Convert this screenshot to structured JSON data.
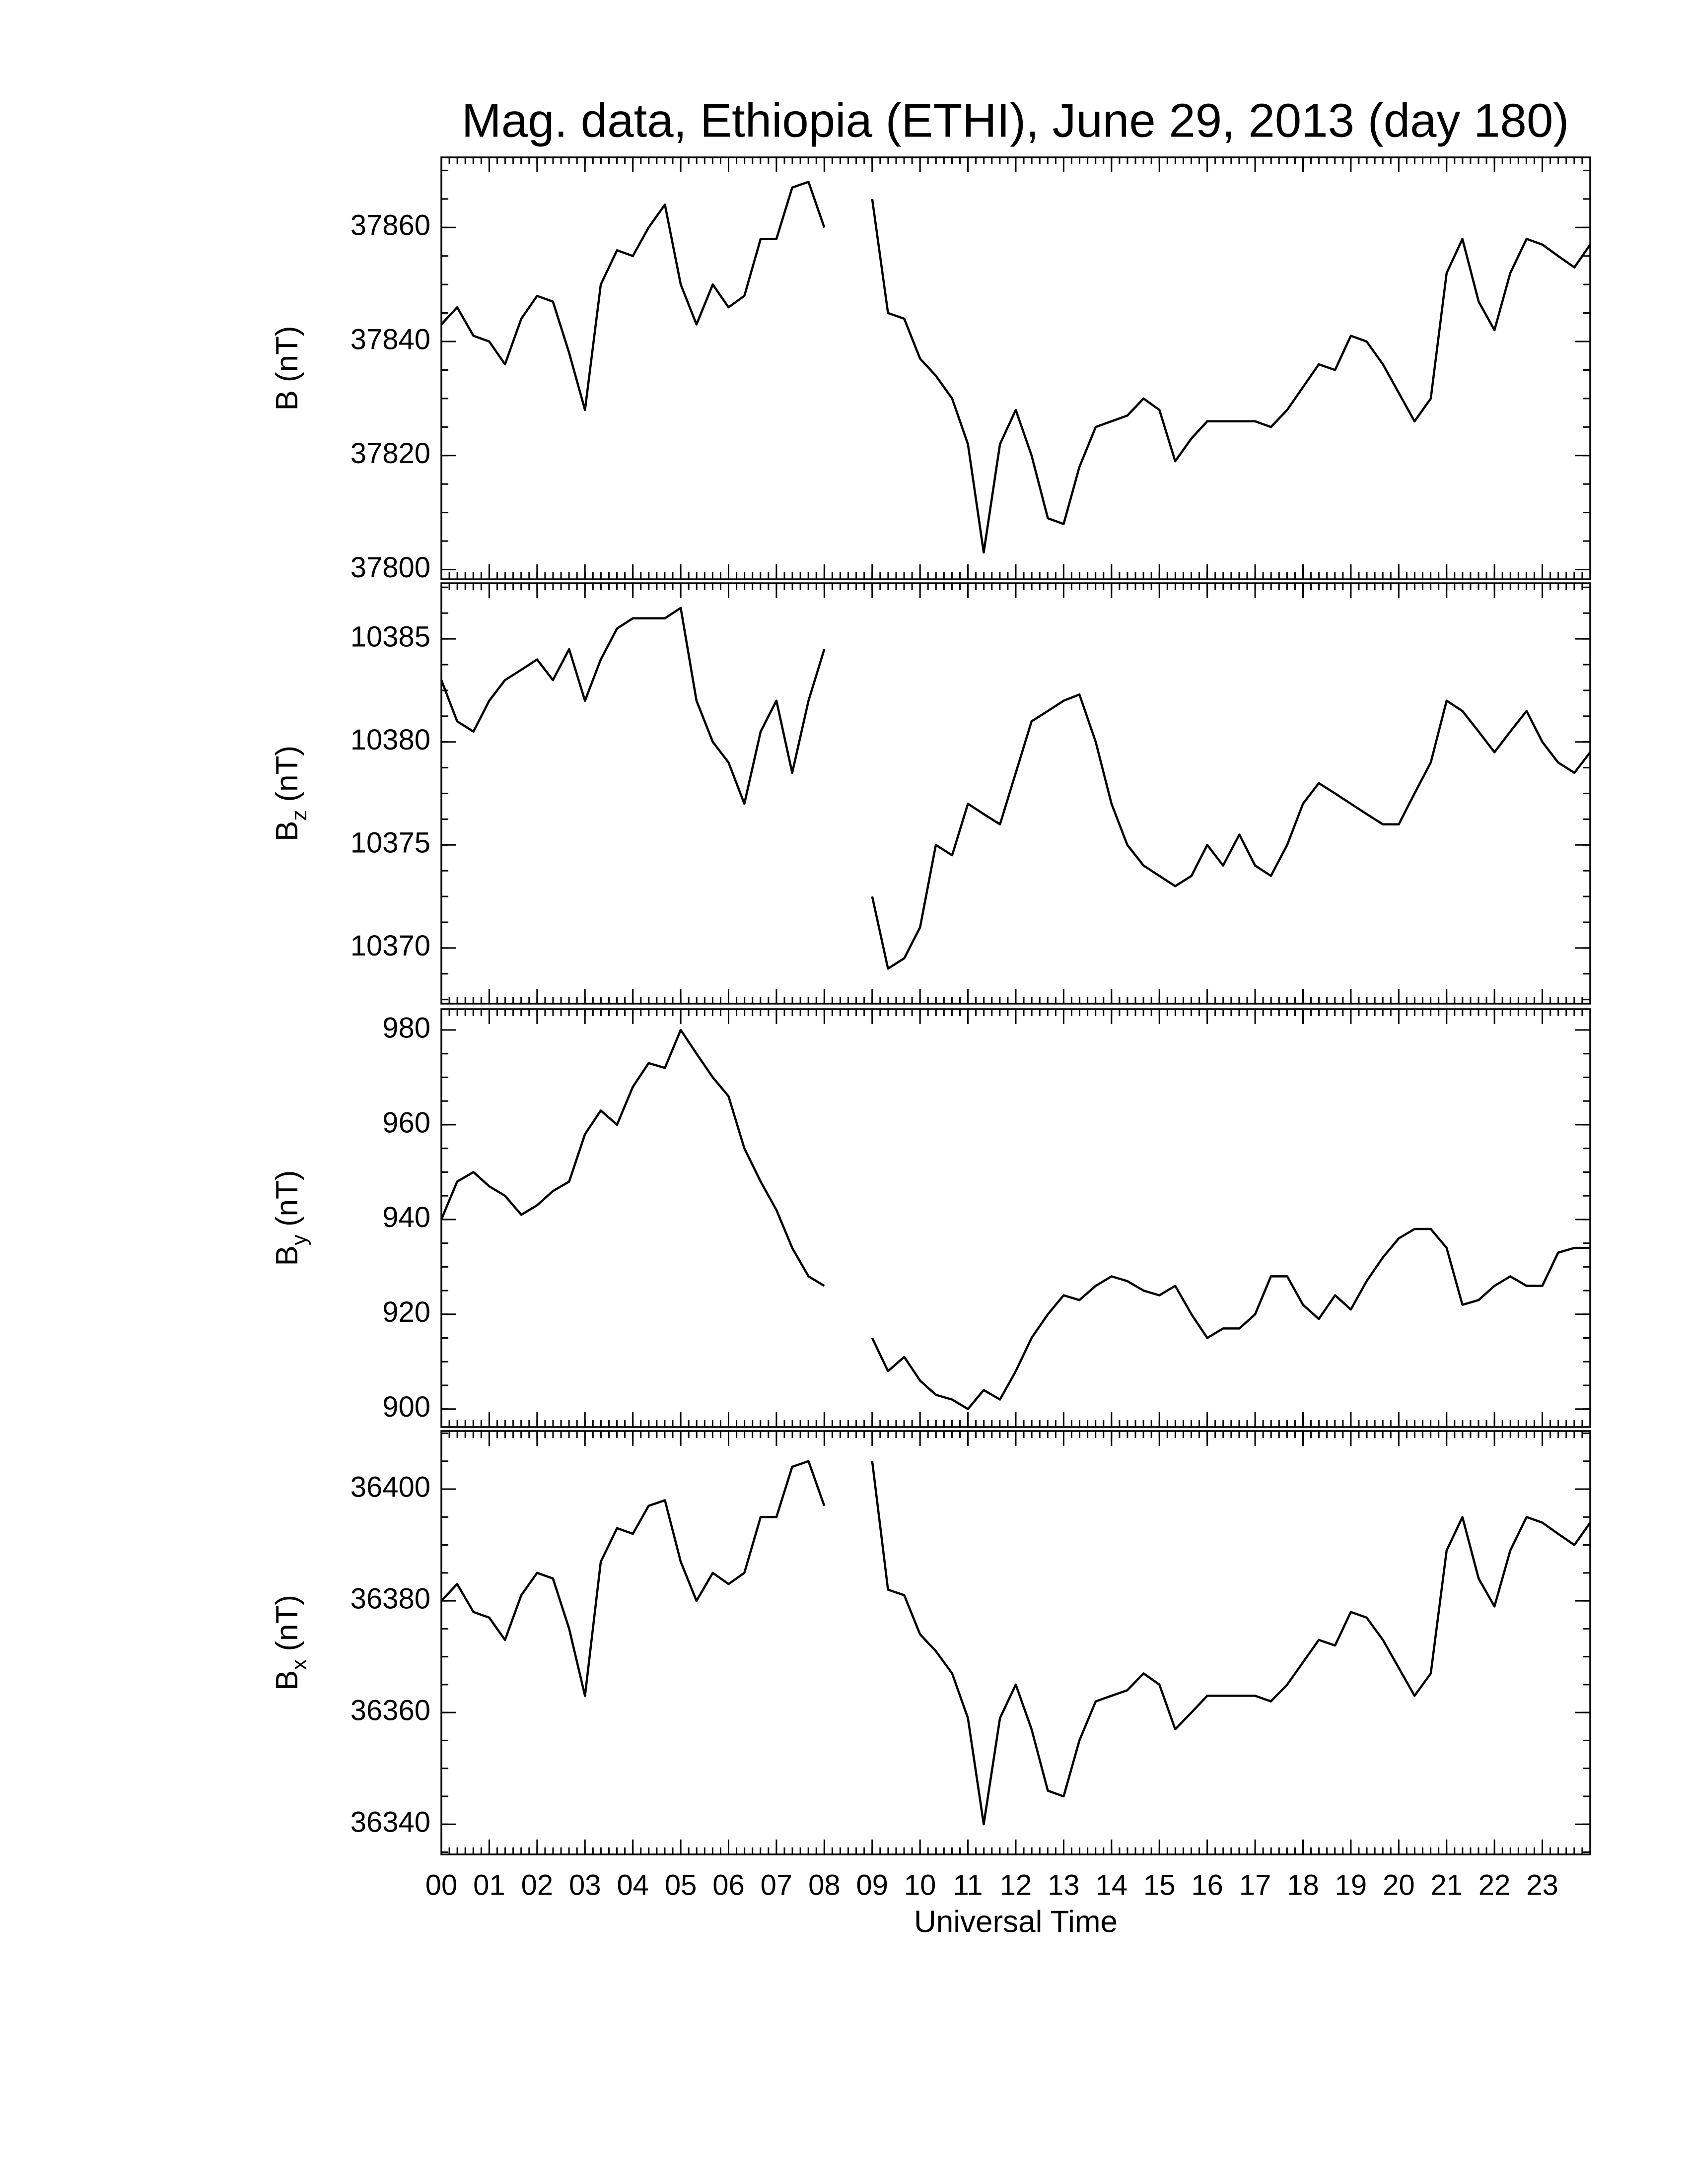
{
  "chart_data": [
    {
      "type": "line",
      "title": "Mag. data, Ethiopia (ETHI), June 29, 2013 (day 180)",
      "ylabel": [
        "B",
        "(nT)"
      ],
      "color": "#000000",
      "x": [
        0,
        0.33,
        0.67,
        1,
        1.33,
        1.67,
        2,
        2.33,
        2.67,
        3,
        3.33,
        3.67,
        4,
        4.33,
        4.67,
        5,
        5.33,
        5.67,
        6,
        6.33,
        6.67,
        7,
        7.33,
        7.67,
        8,
        8.33,
        8.67,
        9,
        9.33,
        9.67,
        10,
        10.33,
        10.67,
        11,
        11.33,
        11.67,
        12,
        12.33,
        12.67,
        13,
        13.33,
        13.67,
        14,
        14.33,
        14.67,
        15,
        15.33,
        15.67,
        16,
        16.33,
        16.67,
        17,
        17.33,
        17.67,
        18,
        18.33,
        18.67,
        19,
        19.33,
        19.67,
        20,
        20.33,
        20.67,
        21,
        21.33,
        21.67,
        22,
        22.33,
        22.67,
        23,
        23.33,
        23.67,
        24
      ],
      "values": [
        37843,
        37846,
        37841,
        37840,
        37836,
        37844,
        37848,
        37847,
        37838,
        37828,
        37850,
        37856,
        37855,
        37860,
        37864,
        37850,
        37843,
        37850,
        37846,
        37848,
        37858,
        37858,
        37867,
        37868,
        37860,
        null,
        null,
        37865,
        37845,
        37844,
        37837,
        37834,
        37830,
        37822,
        37803,
        37822,
        37828,
        37820,
        37809,
        37808,
        37818,
        37825,
        37826,
        37827,
        37830,
        37828,
        37819,
        37823,
        37826,
        37826,
        37826,
        37826,
        37825,
        37828,
        37832,
        37836,
        37835,
        37841,
        37840,
        37836,
        37831,
        37826,
        37830,
        37852,
        37858,
        37847,
        37842,
        37852,
        37858,
        37857,
        37855,
        37853,
        37857
      ],
      "xlim": [
        0,
        24
      ],
      "ylim": [
        37798.3,
        37872.3
      ],
      "yticks": [
        37800,
        37820,
        37840,
        37860
      ]
    },
    {
      "type": "line",
      "ylabel": [
        "B",
        "z",
        "(nT)"
      ],
      "color": "#000000",
      "x": [
        0,
        0.33,
        0.67,
        1,
        1.33,
        1.67,
        2,
        2.33,
        2.67,
        3,
        3.33,
        3.67,
        4,
        4.33,
        4.67,
        5,
        5.33,
        5.67,
        6,
        6.33,
        6.67,
        7,
        7.33,
        7.67,
        8,
        8.33,
        8.67,
        9,
        9.33,
        9.67,
        10,
        10.33,
        10.67,
        11,
        11.33,
        11.67,
        12,
        12.33,
        12.67,
        13,
        13.33,
        13.67,
        14,
        14.33,
        14.67,
        15,
        15.33,
        15.67,
        16,
        16.33,
        16.67,
        17,
        17.33,
        17.67,
        18,
        18.33,
        18.67,
        19,
        19.33,
        19.67,
        20,
        20.33,
        20.67,
        21,
        21.33,
        21.67,
        22,
        22.33,
        22.67,
        23,
        23.33,
        23.67,
        24
      ],
      "values": [
        10383,
        10381,
        10380.5,
        10382,
        10383,
        10383.5,
        10384,
        10383,
        10384.5,
        10382,
        10384,
        10385.5,
        10386,
        10386,
        10386,
        10386.5,
        10382,
        10380,
        10379,
        10377,
        10380.5,
        10382,
        10378.5,
        10382,
        10384.5,
        null,
        null,
        10372.5,
        10369,
        10369.5,
        10371,
        10375,
        10374.5,
        10377,
        10376.5,
        10376,
        10378.5,
        10381,
        10381.5,
        10382,
        10382.3,
        10380,
        10377,
        10375,
        10374,
        10373.5,
        10373,
        10373.5,
        10375,
        10374,
        10375.5,
        10374,
        10373.5,
        10375,
        10377,
        10378,
        10377.5,
        10377,
        10376.5,
        10376,
        10376,
        10377.5,
        10379,
        10382,
        10381.5,
        10380.5,
        10379.5,
        10380.5,
        10381.5,
        10380,
        10379,
        10378.5,
        10379.5
      ],
      "xlim": [
        0,
        24
      ],
      "ylim": [
        10367.3,
        10387.7
      ],
      "yticks": [
        10370,
        10375,
        10380,
        10385
      ]
    },
    {
      "type": "line",
      "ylabel": [
        "B",
        "y",
        "(nT)"
      ],
      "color": "#000000",
      "x": [
        0,
        0.33,
        0.67,
        1,
        1.33,
        1.67,
        2,
        2.33,
        2.67,
        3,
        3.33,
        3.67,
        4,
        4.33,
        4.67,
        5,
        5.33,
        5.67,
        6,
        6.33,
        6.67,
        7,
        7.33,
        7.67,
        8,
        8.33,
        8.67,
        9,
        9.33,
        9.67,
        10,
        10.33,
        10.67,
        11,
        11.33,
        11.67,
        12,
        12.33,
        12.67,
        13,
        13.33,
        13.67,
        14,
        14.33,
        14.67,
        15,
        15.33,
        15.67,
        16,
        16.33,
        16.67,
        17,
        17.33,
        17.67,
        18,
        18.33,
        18.67,
        19,
        19.33,
        19.67,
        20,
        20.33,
        20.67,
        21,
        21.33,
        21.67,
        22,
        22.33,
        22.67,
        23,
        23.33,
        23.67,
        24
      ],
      "values": [
        940,
        948,
        950,
        947,
        945,
        941,
        943,
        946,
        948,
        958,
        963,
        960,
        968,
        973,
        972,
        980,
        975,
        970,
        966,
        955,
        948,
        942,
        934,
        928,
        926,
        null,
        null,
        915,
        908,
        911,
        906,
        903,
        902,
        900,
        904,
        902,
        908,
        915,
        920,
        924,
        923,
        926,
        928,
        927,
        925,
        924,
        926,
        920,
        915,
        917,
        917,
        920,
        928,
        928,
        922,
        919,
        924,
        921,
        927,
        932,
        936,
        938,
        938,
        934,
        922,
        923,
        926,
        928,
        926,
        926,
        933,
        934,
        934
      ],
      "xlim": [
        0,
        24
      ],
      "ylim": [
        896.2,
        984.4
      ],
      "yticks": [
        900,
        920,
        940,
        960,
        980
      ]
    },
    {
      "type": "line",
      "ylabel": [
        "B",
        "x",
        "(nT)"
      ],
      "xlabel": "Universal Time",
      "color": "#000000",
      "x": [
        0,
        0.33,
        0.67,
        1,
        1.33,
        1.67,
        2,
        2.33,
        2.67,
        3,
        3.33,
        3.67,
        4,
        4.33,
        4.67,
        5,
        5.33,
        5.67,
        6,
        6.33,
        6.67,
        7,
        7.33,
        7.67,
        8,
        8.33,
        8.67,
        9,
        9.33,
        9.67,
        10,
        10.33,
        10.67,
        11,
        11.33,
        11.67,
        12,
        12.33,
        12.67,
        13,
        13.33,
        13.67,
        14,
        14.33,
        14.67,
        15,
        15.33,
        15.67,
        16,
        16.33,
        16.67,
        17,
        17.33,
        17.67,
        18,
        18.33,
        18.67,
        19,
        19.33,
        19.67,
        20,
        20.33,
        20.67,
        21,
        21.33,
        21.67,
        22,
        22.33,
        22.67,
        23,
        23.33,
        23.67,
        24
      ],
      "values": [
        36380,
        36383,
        36378,
        36377,
        36373,
        36381,
        36385,
        36384,
        36375,
        36363,
        36387,
        36393,
        36392,
        36397,
        36398,
        36387,
        36380,
        36385,
        36383,
        36385,
        36395,
        36395,
        36404,
        36405,
        36397,
        null,
        null,
        36405,
        36382,
        36381,
        36374,
        36371,
        36367,
        36359,
        36340,
        36359,
        36365,
        36357,
        36346,
        36345,
        36355,
        36362,
        36363,
        36364,
        36367,
        36365,
        36357,
        36360,
        36363,
        36363,
        36363,
        36363,
        36362,
        36365,
        36369,
        36373,
        36372,
        36378,
        36377,
        36373,
        36368,
        36363,
        36367,
        36389,
        36395,
        36384,
        36379,
        36389,
        36395,
        36394,
        36392,
        36390,
        36394
      ],
      "xlim": [
        0,
        24
      ],
      "ylim": [
        36334.6,
        36410.4
      ],
      "yticks": [
        36340,
        36360,
        36380,
        36400
      ],
      "xticks": [
        {
          "value": 0,
          "label": "00"
        },
        {
          "value": 1,
          "label": "01"
        },
        {
          "value": 2,
          "label": "02"
        },
        {
          "value": 3,
          "label": "03"
        },
        {
          "value": 4,
          "label": "04"
        },
        {
          "value": 5,
          "label": "05"
        },
        {
          "value": 6,
          "label": "06"
        },
        {
          "value": 7,
          "label": "07"
        },
        {
          "value": 8,
          "label": "08"
        },
        {
          "value": 9,
          "label": "09"
        },
        {
          "value": 10,
          "label": "10"
        },
        {
          "value": 11,
          "label": "11"
        },
        {
          "value": 12,
          "label": "12"
        },
        {
          "value": 13,
          "label": "13"
        },
        {
          "value": 14,
          "label": "14"
        },
        {
          "value": 15,
          "label": "15"
        },
        {
          "value": 16,
          "label": "16"
        },
        {
          "value": 17,
          "label": "17"
        },
        {
          "value": 18,
          "label": "18"
        },
        {
          "value": 19,
          "label": "19"
        },
        {
          "value": 20,
          "label": "20"
        },
        {
          "value": 21,
          "label": "21"
        },
        {
          "value": 22,
          "label": "22"
        },
        {
          "value": 23,
          "label": "23"
        }
      ]
    }
  ]
}
